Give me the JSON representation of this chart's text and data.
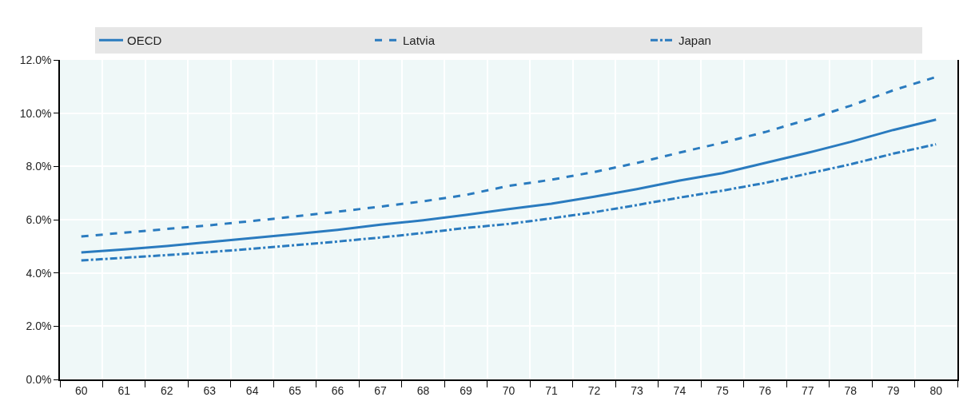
{
  "chart_data": {
    "type": "line",
    "categories": [
      "60",
      "61",
      "62",
      "63",
      "64",
      "65",
      "66",
      "67",
      "68",
      "69",
      "70",
      "71",
      "72",
      "73",
      "74",
      "75",
      "76",
      "77",
      "78",
      "79",
      "80"
    ],
    "series": [
      {
        "name": "OECD",
        "color": "#2a7bbf",
        "line_style": "solid",
        "values": [
          4.77,
          4.88,
          5.01,
          5.16,
          5.31,
          5.46,
          5.62,
          5.81,
          5.98,
          6.18,
          6.4,
          6.6,
          6.86,
          7.15,
          7.47,
          7.75,
          8.13,
          8.51,
          8.92,
          9.37,
          9.76
        ]
      },
      {
        "name": "Latvia",
        "color": "#2a7bbf",
        "line_style": "dashed",
        "values": [
          5.37,
          5.51,
          5.65,
          5.79,
          5.95,
          6.12,
          6.3,
          6.49,
          6.69,
          6.93,
          7.27,
          7.5,
          7.79,
          8.13,
          8.52,
          8.89,
          9.29,
          9.76,
          10.28,
          10.86,
          11.36
        ]
      },
      {
        "name": "Japan",
        "color": "#2a7bbf",
        "line_style": "dashdot",
        "values": [
          4.47,
          4.57,
          4.67,
          4.78,
          4.91,
          5.04,
          5.18,
          5.33,
          5.5,
          5.69,
          5.84,
          6.05,
          6.28,
          6.55,
          6.83,
          7.09,
          7.38,
          7.73,
          8.08,
          8.48,
          8.83
        ]
      }
    ],
    "ylim": [
      0,
      12
    ],
    "yticks": [
      {
        "value": 0,
        "label": "0.0%"
      },
      {
        "value": 2,
        "label": "2.0%"
      },
      {
        "value": 4,
        "label": "4.0%"
      },
      {
        "value": 6,
        "label": "6.0%"
      },
      {
        "value": 8,
        "label": "8.0%"
      },
      {
        "value": 10,
        "label": "10.0%"
      },
      {
        "value": 12,
        "label": "12.0%"
      }
    ],
    "grid": true,
    "legend": "top",
    "marker": "none"
  }
}
